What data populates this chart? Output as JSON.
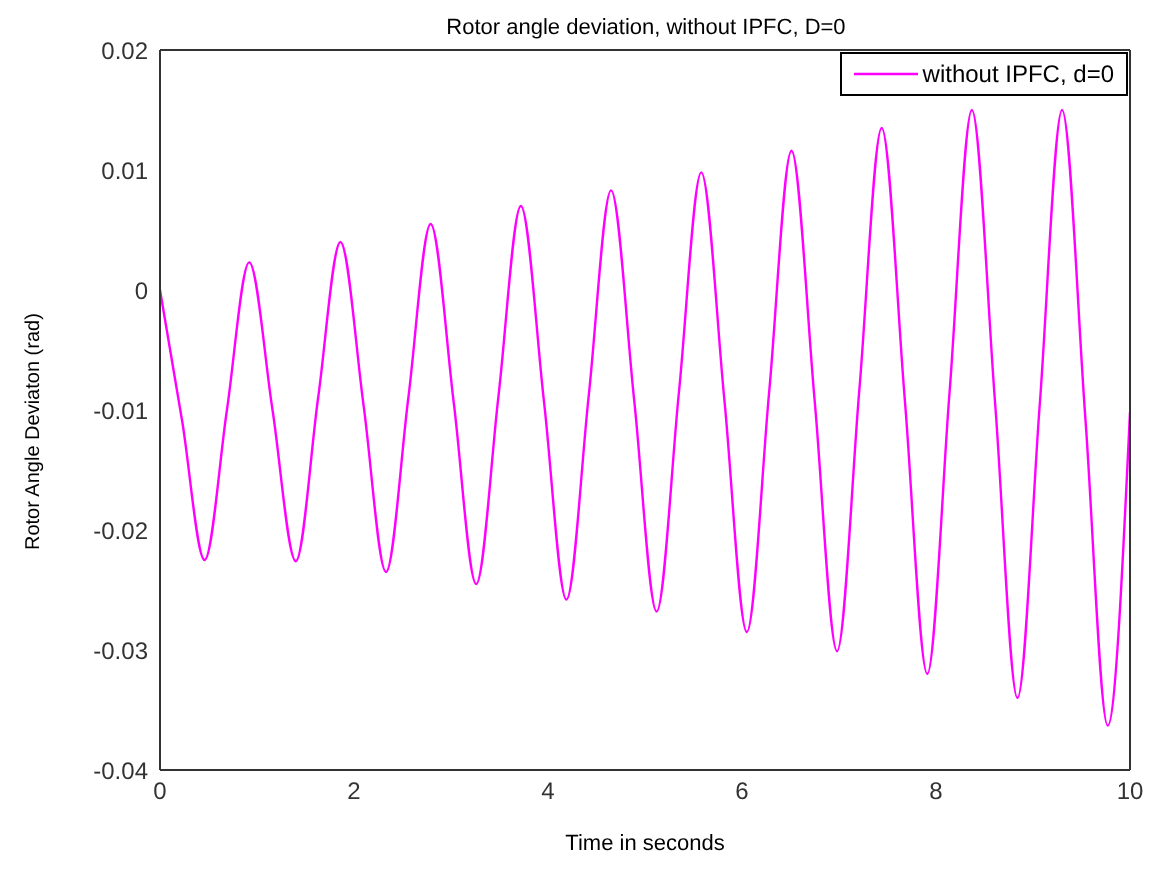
{
  "chart_data": {
    "type": "line",
    "title": "Rotor angle deviation, without IPFC, D=0",
    "xlabel": "Time in seconds",
    "ylabel": "Rotor Angle Deviaton (rad)",
    "x": [
      0,
      0.23,
      0.46,
      0.69,
      0.92,
      1.16,
      1.4,
      1.63,
      1.86,
      2.1,
      2.33,
      2.56,
      2.79,
      3.03,
      3.26,
      3.49,
      3.72,
      3.96,
      4.19,
      4.42,
      4.65,
      4.89,
      5.12,
      5.35,
      5.58,
      5.82,
      6.05,
      6.28,
      6.51,
      6.75,
      6.98,
      7.21,
      7.44,
      7.68,
      7.91,
      8.14,
      8.37,
      8.61,
      8.84,
      9.07,
      9.3,
      9.54,
      9.77,
      10
    ],
    "series": [
      {
        "name": "without IPFC, d=0",
        "color": "#ff00ff",
        "values": [
          0,
          -0.011,
          -0.0225,
          -0.01,
          0.0023,
          -0.01,
          -0.0226,
          -0.009,
          0.004,
          -0.0097,
          -0.0235,
          -0.009,
          0.0055,
          -0.0095,
          -0.0245,
          -0.0088,
          0.007,
          -0.0094,
          -0.0258,
          -0.0088,
          0.0083,
          -0.0093,
          -0.0268,
          -0.0085,
          0.0098,
          -0.0093,
          -0.0285,
          -0.0085,
          0.0116,
          -0.0093,
          -0.0301,
          -0.0083,
          0.0135,
          -0.0093,
          -0.032,
          -0.0085,
          0.015,
          -0.0095,
          -0.034,
          -0.0095,
          0.015,
          -0.0107,
          -0.0363,
          -0.0102
        ]
      }
    ],
    "xlim": [
      0,
      10
    ],
    "xticks": [
      0,
      2,
      4,
      6,
      8,
      10
    ],
    "ylim": [
      -0.04,
      0.02
    ],
    "yticks": [
      -0.04,
      -0.03,
      -0.02,
      -0.01,
      0,
      0.01,
      0.02
    ],
    "grid": false,
    "legend": "top right",
    "marker": "none",
    "line_style": "solid"
  }
}
